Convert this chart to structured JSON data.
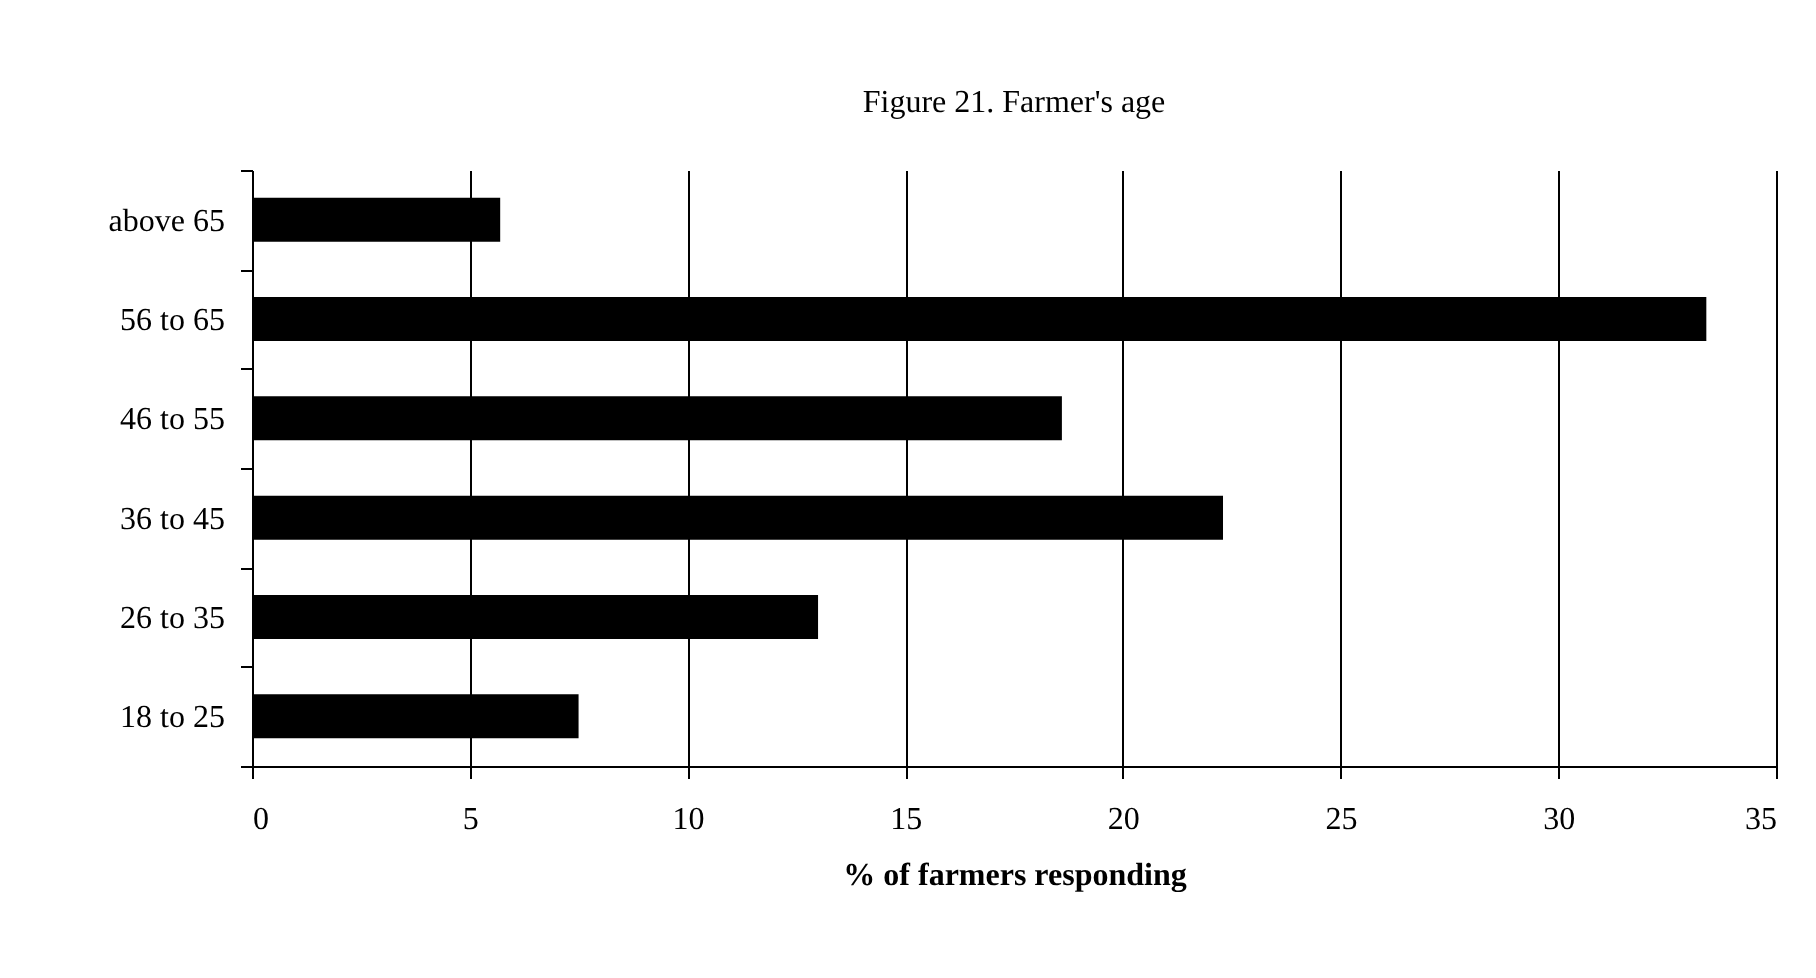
{
  "chart_data": {
    "type": "bar",
    "orientation": "horizontal",
    "title": "Figure 21. Farmer's age",
    "xlabel": "% of farmers responding",
    "categories": [
      "above 65",
      "56 to 65",
      "46 to 55",
      "36 to 45",
      "26 to 35",
      "18 to 25"
    ],
    "values": [
      5.7,
      33.4,
      18.6,
      22.3,
      13.0,
      7.5
    ],
    "color": "#000000",
    "xlim": [
      0,
      35
    ],
    "xticks": [
      0,
      5,
      10,
      15,
      20,
      25,
      30,
      35
    ],
    "grid": "x"
  }
}
